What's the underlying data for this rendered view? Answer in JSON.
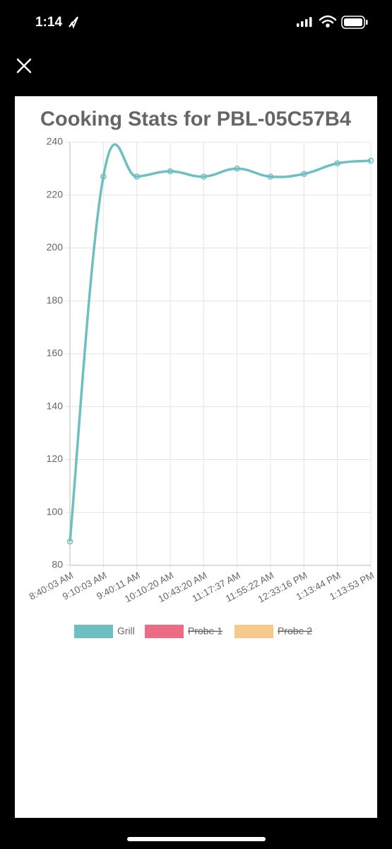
{
  "status_bar": {
    "time": "1:14"
  },
  "chart_data": {
    "type": "line",
    "title": "Cooking Stats for PBL-05C57B4",
    "categories": [
      "8:40:03 AM",
      "9:10:03 AM",
      "9:40:11 AM",
      "10:10:20 AM",
      "10:43:20 AM",
      "11:17:37 AM",
      "11:55:22 AM",
      "12:33:16 PM",
      "1:13:44 PM",
      "1:13:53 PM"
    ],
    "series": [
      {
        "name": "Grill",
        "color": "#6dbfc1",
        "values": [
          89,
          227,
          227,
          229,
          227,
          230,
          227,
          228,
          232,
          233
        ]
      },
      {
        "name": "Probe 1",
        "color": "#ec6c86",
        "hidden": true
      },
      {
        "name": "Probe 2",
        "color": "#f6c98c",
        "hidden": true
      }
    ],
    "ylim": [
      80,
      240
    ],
    "yticks": [
      80,
      100,
      120,
      140,
      160,
      180,
      200,
      220,
      240
    ],
    "grid": true,
    "legend": "bottom"
  }
}
